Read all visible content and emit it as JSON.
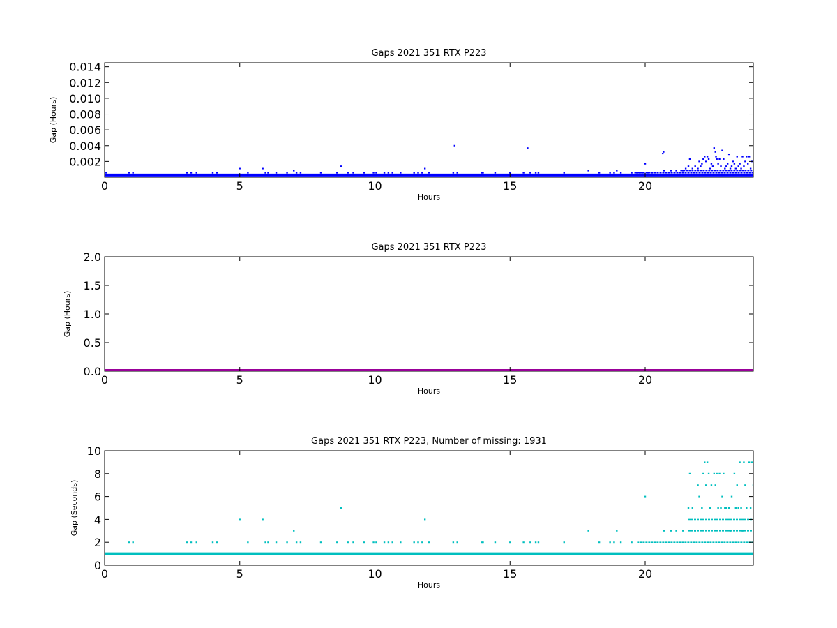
{
  "chart_data": [
    {
      "type": "scatter",
      "title": "Gaps 2021 351 RTX  P223",
      "xlabel": "Hours",
      "ylabel": "Gap (Hours)",
      "xlim": [
        0,
        24
      ],
      "ylim": [
        0,
        0.0145
      ],
      "xticks": [
        0,
        5,
        10,
        15,
        20
      ],
      "yticks": [
        0.002,
        0.004,
        0.006,
        0.008,
        0.01,
        0.012,
        0.014
      ],
      "ytick_labels": [
        "0.002",
        "0.004",
        "0.006",
        "0.008",
        "0.010",
        "0.012",
        "0.014"
      ],
      "grid": false,
      "series": [
        {
          "color": "#0000ff",
          "marker": "point",
          "baseline": {
            "y": 0.00028,
            "from": 0,
            "to": 24
          },
          "points": [
            [
              0.05,
              0.00056
            ],
            [
              0.9,
              0.00056
            ],
            [
              1.05,
              0.00056
            ],
            [
              3.05,
              0.00056
            ],
            [
              3.2,
              0.00056
            ],
            [
              3.4,
              0.00056
            ],
            [
              4.0,
              0.00056
            ],
            [
              4.15,
              0.00056
            ],
            [
              5.0,
              0.0011
            ],
            [
              5.3,
              0.00056
            ],
            [
              5.85,
              0.0011
            ],
            [
              5.95,
              0.00056
            ],
            [
              6.05,
              0.00056
            ],
            [
              6.35,
              0.00056
            ],
            [
              6.75,
              0.00056
            ],
            [
              7.0,
              0.00083
            ],
            [
              7.1,
              0.00056
            ],
            [
              7.25,
              0.00056
            ],
            [
              8.0,
              0.00056
            ],
            [
              8.6,
              0.00056
            ],
            [
              8.75,
              0.0014
            ],
            [
              9.0,
              0.00056
            ],
            [
              9.2,
              0.00056
            ],
            [
              9.6,
              0.00056
            ],
            [
              9.95,
              0.00056
            ],
            [
              10.05,
              0.00056
            ],
            [
              10.35,
              0.00056
            ],
            [
              10.5,
              0.00056
            ],
            [
              10.65,
              0.00056
            ],
            [
              10.95,
              0.00056
            ],
            [
              11.45,
              0.00056
            ],
            [
              11.6,
              0.00056
            ],
            [
              11.75,
              0.00056
            ],
            [
              11.85,
              0.0011
            ],
            [
              12.0,
              0.00056
            ],
            [
              12.9,
              0.00056
            ],
            [
              12.95,
              0.004
            ],
            [
              13.05,
              0.00056
            ],
            [
              13.95,
              0.00056
            ],
            [
              14.0,
              0.00056
            ],
            [
              14.45,
              0.00056
            ],
            [
              15.0,
              0.00056
            ],
            [
              15.5,
              0.00056
            ],
            [
              15.65,
              0.0037
            ],
            [
              15.75,
              0.00056
            ],
            [
              15.95,
              0.00056
            ],
            [
              16.05,
              0.00056
            ],
            [
              17.0,
              0.00056
            ],
            [
              17.9,
              0.00083
            ],
            [
              18.3,
              0.00056
            ],
            [
              18.7,
              0.00056
            ],
            [
              18.85,
              0.00056
            ],
            [
              18.95,
              0.00083
            ],
            [
              19.1,
              0.00056
            ],
            [
              19.5,
              0.00056
            ],
            [
              19.7,
              0.00056
            ],
            [
              19.8,
              0.00056
            ],
            [
              19.9,
              0.00056
            ],
            [
              20.0,
              0.0017
            ],
            [
              20.1,
              0.00056
            ],
            [
              20.25,
              0.00056
            ],
            [
              20.65,
              0.003
            ],
            [
              20.68,
              0.0032
            ],
            [
              20.7,
              0.00083
            ],
            [
              20.95,
              0.00083
            ],
            [
              21.15,
              0.00083
            ],
            [
              21.4,
              0.00083
            ],
            [
              21.5,
              0.0011
            ],
            [
              21.6,
              0.0014
            ],
            [
              21.65,
              0.0023
            ],
            [
              21.75,
              0.0011
            ],
            [
              21.85,
              0.0014
            ],
            [
              21.95,
              0.0011
            ],
            [
              22.0,
              0.002
            ],
            [
              22.05,
              0.0014
            ],
            [
              22.1,
              0.0017
            ],
            [
              22.15,
              0.0023
            ],
            [
              22.2,
              0.0026
            ],
            [
              22.25,
              0.002
            ],
            [
              22.3,
              0.0026
            ],
            [
              22.35,
              0.0023
            ],
            [
              22.4,
              0.0011
            ],
            [
              22.45,
              0.0017
            ],
            [
              22.5,
              0.0014
            ],
            [
              22.55,
              0.0037
            ],
            [
              22.6,
              0.0032
            ],
            [
              22.62,
              0.0026
            ],
            [
              22.65,
              0.0023
            ],
            [
              22.7,
              0.0017
            ],
            [
              22.75,
              0.0023
            ],
            [
              22.8,
              0.0014
            ],
            [
              22.85,
              0.0034
            ],
            [
              22.9,
              0.0023
            ],
            [
              22.95,
              0.0011
            ],
            [
              23.0,
              0.0014
            ],
            [
              23.05,
              0.0017
            ],
            [
              23.1,
              0.0029
            ],
            [
              23.15,
              0.0011
            ],
            [
              23.2,
              0.0014
            ],
            [
              23.25,
              0.002
            ],
            [
              23.3,
              0.0017
            ],
            [
              23.35,
              0.0011
            ],
            [
              23.4,
              0.0026
            ],
            [
              23.45,
              0.0014
            ],
            [
              23.5,
              0.0017
            ],
            [
              23.55,
              0.0011
            ],
            [
              23.6,
              0.0026
            ],
            [
              23.65,
              0.0014
            ],
            [
              23.7,
              0.002
            ],
            [
              23.75,
              0.0026
            ],
            [
              23.8,
              0.0017
            ],
            [
              23.85,
              0.0026
            ],
            [
              23.9,
              0.0011
            ],
            [
              23.95,
              0.002
            ]
          ],
          "dense_bands": [
            {
              "y": 0.00056,
              "from": 19.6,
              "to": 24
            },
            {
              "y": 0.00083,
              "from": 21.3,
              "to": 24
            }
          ]
        }
      ]
    },
    {
      "type": "line",
      "title": "Gaps 2021 351 RTX  P223",
      "xlabel": "Hours",
      "ylabel": "Gap (Hours)",
      "xlim": [
        0,
        24
      ],
      "ylim": [
        0,
        2.0
      ],
      "xticks": [
        0,
        5,
        10,
        15,
        20
      ],
      "yticks": [
        0.0,
        0.5,
        1.0,
        1.5,
        2.0
      ],
      "ytick_labels": [
        "0.0",
        "0.5",
        "1.0",
        "1.5",
        "2.0"
      ],
      "grid": false,
      "series": [
        {
          "color": "#990099",
          "points": [
            [
              0,
              0.0
            ],
            [
              24,
              0.0
            ]
          ]
        }
      ]
    },
    {
      "type": "scatter",
      "title": "Gaps 2021 351 RTX  P223, Number of missing: 1931",
      "xlabel": "Hours",
      "ylabel": "Gap (Seconds)",
      "xlim": [
        0,
        24
      ],
      "ylim": [
        0,
        10
      ],
      "xticks": [
        0,
        5,
        10,
        15,
        20
      ],
      "yticks": [
        0,
        2,
        4,
        6,
        8,
        10
      ],
      "ytick_labels": [
        "0",
        "2",
        "4",
        "6",
        "8",
        "10"
      ],
      "grid": false,
      "series": [
        {
          "color": "#00bfbf",
          "marker": "point",
          "baseline": {
            "y": 1,
            "from": 0,
            "to": 24
          },
          "points": [
            [
              0.9,
              2
            ],
            [
              1.05,
              2
            ],
            [
              3.05,
              2
            ],
            [
              3.2,
              2
            ],
            [
              3.4,
              2
            ],
            [
              4.0,
              2
            ],
            [
              4.15,
              2
            ],
            [
              5.0,
              4
            ],
            [
              5.3,
              2
            ],
            [
              5.85,
              4
            ],
            [
              5.95,
              2
            ],
            [
              6.05,
              2
            ],
            [
              6.35,
              2
            ],
            [
              6.75,
              2
            ],
            [
              7.0,
              3
            ],
            [
              7.1,
              2
            ],
            [
              7.25,
              2
            ],
            [
              8.0,
              2
            ],
            [
              8.6,
              2
            ],
            [
              8.75,
              5
            ],
            [
              9.0,
              2
            ],
            [
              9.2,
              2
            ],
            [
              9.6,
              2
            ],
            [
              9.95,
              2
            ],
            [
              10.05,
              2
            ],
            [
              10.35,
              2
            ],
            [
              10.5,
              2
            ],
            [
              10.65,
              2
            ],
            [
              10.95,
              2
            ],
            [
              11.45,
              2
            ],
            [
              11.6,
              2
            ],
            [
              11.75,
              2
            ],
            [
              11.85,
              4
            ],
            [
              12.0,
              2
            ],
            [
              12.9,
              2
            ],
            [
              13.05,
              2
            ],
            [
              13.95,
              2
            ],
            [
              14.0,
              2
            ],
            [
              14.45,
              2
            ],
            [
              15.0,
              2
            ],
            [
              15.5,
              2
            ],
            [
              15.75,
              2
            ],
            [
              15.95,
              2
            ],
            [
              16.05,
              2
            ],
            [
              17.0,
              2
            ],
            [
              17.9,
              3
            ],
            [
              18.3,
              2
            ],
            [
              18.7,
              2
            ],
            [
              18.85,
              2
            ],
            [
              18.95,
              3
            ],
            [
              19.1,
              2
            ],
            [
              19.5,
              2
            ],
            [
              20.0,
              6
            ],
            [
              20.7,
              3
            ],
            [
              20.95,
              3
            ],
            [
              21.15,
              3
            ],
            [
              21.4,
              3
            ],
            [
              21.6,
              5
            ],
            [
              21.65,
              8
            ],
            [
              21.75,
              5
            ],
            [
              21.85,
              3
            ],
            [
              21.95,
              7
            ],
            [
              22.0,
              6
            ],
            [
              22.1,
              5
            ],
            [
              22.15,
              8
            ],
            [
              22.2,
              9
            ],
            [
              22.25,
              7
            ],
            [
              22.3,
              9
            ],
            [
              22.35,
              8
            ],
            [
              22.4,
              5
            ],
            [
              22.45,
              7
            ],
            [
              22.55,
              8
            ],
            [
              22.6,
              7
            ],
            [
              22.65,
              8
            ],
            [
              22.7,
              5
            ],
            [
              22.75,
              8
            ],
            [
              22.8,
              5
            ],
            [
              22.85,
              6
            ],
            [
              22.9,
              8
            ],
            [
              22.95,
              5
            ],
            [
              23.0,
              5
            ],
            [
              23.1,
              5
            ],
            [
              23.15,
              3
            ],
            [
              23.2,
              6
            ],
            [
              23.3,
              8
            ],
            [
              23.35,
              5
            ],
            [
              23.4,
              7
            ],
            [
              23.45,
              5
            ],
            [
              23.5,
              9
            ],
            [
              23.55,
              5
            ],
            [
              23.6,
              3
            ],
            [
              23.65,
              9
            ],
            [
              23.7,
              7
            ],
            [
              23.75,
              5
            ],
            [
              23.85,
              9
            ],
            [
              23.9,
              5
            ],
            [
              23.95,
              9
            ],
            [
              24.0,
              7
            ]
          ],
          "dense_bands": [
            {
              "y": 2,
              "from": 19.7,
              "to": 24
            },
            {
              "y": 3,
              "from": 21.6,
              "to": 24
            },
            {
              "y": 4,
              "from": 21.6,
              "to": 24
            }
          ]
        }
      ]
    }
  ]
}
